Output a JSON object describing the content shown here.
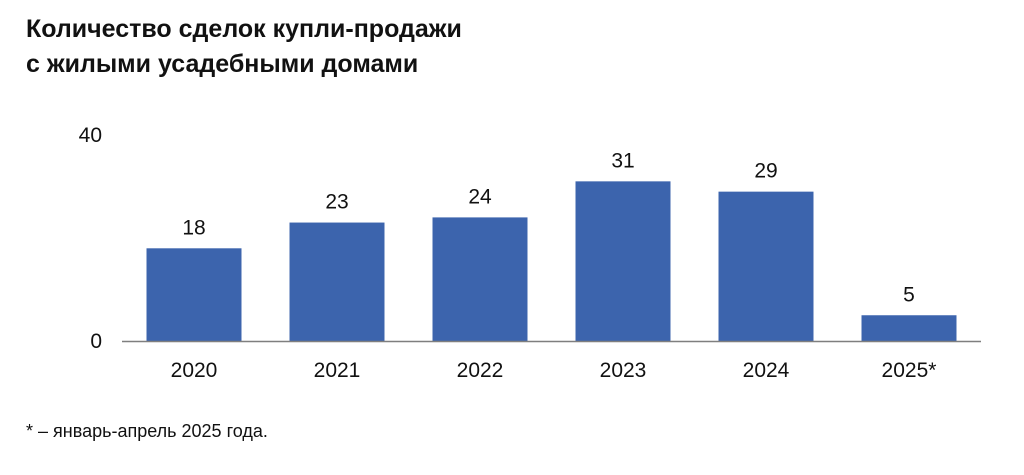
{
  "title": {
    "line1": "Количество сделок купли-продажи",
    "line2": "с жилыми усадебными домами"
  },
  "footnote": "* – январь-апрель 2025 года.",
  "colors": {
    "bar": "#3c64ad",
    "axis": "#7f7f7f"
  },
  "chart_data": {
    "type": "bar",
    "title": "Количество сделок купли-продажи с жилыми усадебными домами",
    "categories": [
      "2020",
      "2021",
      "2022",
      "2023",
      "2024",
      "2025*"
    ],
    "values": [
      18,
      23,
      24,
      31,
      29,
      5
    ],
    "data_labels": [
      "18",
      "23",
      "24",
      "31",
      "29",
      "5"
    ],
    "y_ticks": [
      "0",
      "40"
    ],
    "ylim": [
      0,
      40
    ],
    "xlabel": "",
    "ylabel": "",
    "grid": false,
    "legend": "none"
  }
}
